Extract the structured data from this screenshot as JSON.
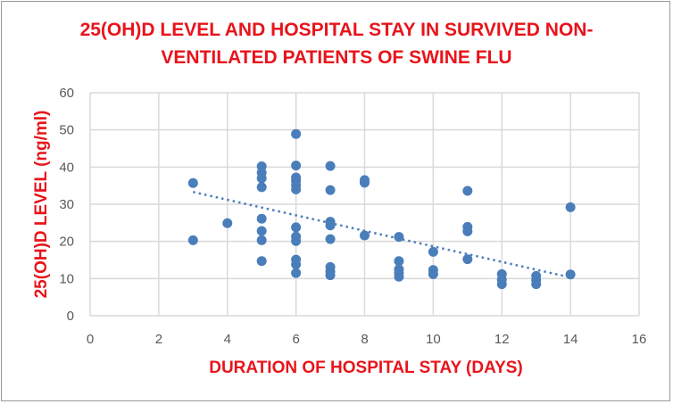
{
  "chart_data": {
    "type": "scatter",
    "title_lines": [
      "25(OH)D LEVEL AND HOSPITAL STAY IN SURVIVED NON-",
      "VENTILATED PATIENTS OF SWINE FLU"
    ],
    "xlabel": "DURATION OF HOSPITAL STAY (DAYS)",
    "ylabel": "25(OH)D LEVEL (ng/ml)",
    "xlim": [
      0,
      16
    ],
    "ylim": [
      0,
      60
    ],
    "xticks": [
      0,
      2,
      4,
      6,
      8,
      10,
      12,
      14,
      16
    ],
    "yticks": [
      0,
      10,
      20,
      30,
      40,
      50,
      60
    ],
    "grid": true,
    "color": "#4a7ebb",
    "title_color": "#e8141b",
    "trendline": {
      "type": "linear",
      "style": "dotted",
      "from": [
        3,
        33.3
      ],
      "to": [
        14,
        10.3
      ]
    },
    "points": [
      [
        3,
        35.7
      ],
      [
        3,
        20.3
      ],
      [
        4,
        24.9
      ],
      [
        5,
        40.2
      ],
      [
        5,
        38.5
      ],
      [
        5,
        37
      ],
      [
        5,
        34.6
      ],
      [
        5,
        26.1
      ],
      [
        5,
        22.8
      ],
      [
        5,
        20.3
      ],
      [
        5,
        14.7
      ],
      [
        6,
        48.9
      ],
      [
        6,
        40.4
      ],
      [
        6,
        37.2
      ],
      [
        6,
        36.3
      ],
      [
        6,
        35.1
      ],
      [
        6,
        34
      ],
      [
        6,
        23.8
      ],
      [
        6,
        21.3
      ],
      [
        6,
        20.1
      ],
      [
        6,
        15.1
      ],
      [
        6,
        13.8
      ],
      [
        6,
        11.5
      ],
      [
        7,
        40.3
      ],
      [
        7,
        33.8
      ],
      [
        7,
        25.3
      ],
      [
        7,
        24.3
      ],
      [
        7,
        20.6
      ],
      [
        7,
        13.1
      ],
      [
        7,
        11.9
      ],
      [
        7,
        10.9
      ],
      [
        8,
        36.5
      ],
      [
        8,
        35.8
      ],
      [
        8,
        21.6
      ],
      [
        9,
        21.2
      ],
      [
        9,
        14.7
      ],
      [
        9,
        12.5
      ],
      [
        9,
        11.5
      ],
      [
        9,
        10.5
      ],
      [
        10,
        17.2
      ],
      [
        10,
        12.3
      ],
      [
        10,
        11.2
      ],
      [
        11,
        33.6
      ],
      [
        11,
        23.9
      ],
      [
        11,
        22.7
      ],
      [
        11,
        15.2
      ],
      [
        12,
        11.2
      ],
      [
        12,
        9.7
      ],
      [
        12,
        8.5
      ],
      [
        13,
        10.7
      ],
      [
        13,
        9.6
      ],
      [
        13,
        8.5
      ],
      [
        14,
        29.2
      ],
      [
        14,
        11.1
      ]
    ]
  }
}
